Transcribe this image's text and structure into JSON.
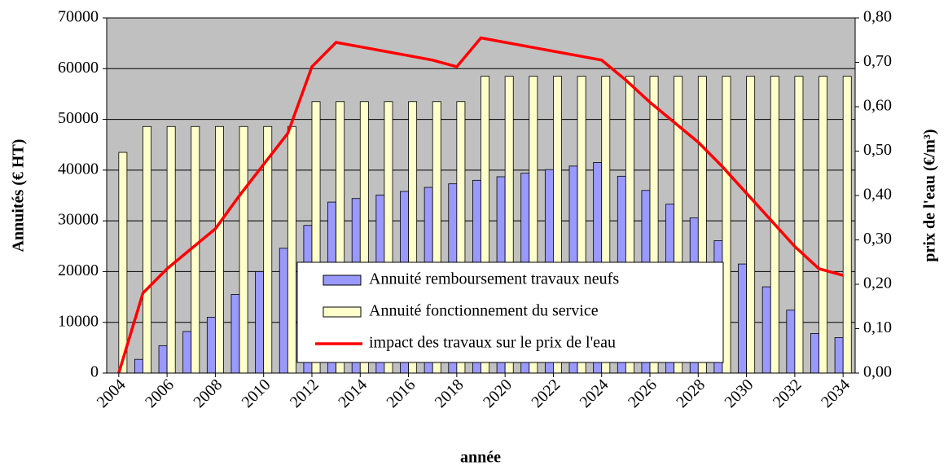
{
  "chart_data": {
    "type": "bar",
    "x_label": "année",
    "y_label": "Annuités (€ HT)",
    "y2_label": "prix de l'eau (€/m³)",
    "categories": [
      "2004",
      null,
      "2006",
      null,
      "2008",
      null,
      "2010",
      null,
      "2012",
      null,
      "2014",
      null,
      "2016",
      null,
      "2018",
      null,
      "2020",
      null,
      "2022",
      null,
      "2024",
      null,
      "2026",
      null,
      "2028",
      null,
      "2030",
      null,
      "2032",
      null,
      "2034"
    ],
    "series": [
      {
        "name": "Annuité remboursement travaux neufs",
        "type": "bar",
        "color": "#9999ff",
        "values": [
          0,
          2700,
          5400,
          8200,
          11000,
          15500,
          20000,
          24600,
          29100,
          33700,
          34400,
          35100,
          35800,
          36600,
          37300,
          38000,
          38700,
          39400,
          40100,
          40800,
          41500,
          38800,
          36000,
          33300,
          30600,
          26100,
          21500,
          17000,
          12400,
          7800,
          7000
        ]
      },
      {
        "name": "Annuité fonctionnement du service",
        "type": "bar",
        "color": "#ffffcc",
        "values": [
          43500,
          48600,
          48600,
          48600,
          48600,
          48600,
          48600,
          48600,
          53500,
          53500,
          53500,
          53500,
          53500,
          53500,
          53500,
          58500,
          58500,
          58500,
          58500,
          58500,
          58500,
          58500,
          58500,
          58500,
          58500,
          58500,
          58500,
          58500,
          58500,
          58500,
          58500
        ]
      },
      {
        "name": "impact des travaux sur le prix de l'eau",
        "type": "line",
        "axis": "y2",
        "color": "#ff0000",
        "values": [
          0,
          0.18,
          0.235,
          0.28,
          0.325,
          0.4,
          0.47,
          0.54,
          0.69,
          0.745,
          0.735,
          0.725,
          0.715,
          0.705,
          0.69,
          0.755,
          0.745,
          0.735,
          0.725,
          0.715,
          0.705,
          0.66,
          0.61,
          0.565,
          0.52,
          0.465,
          0.405,
          0.345,
          0.285,
          0.235,
          0.22
        ]
      }
    ],
    "ylim": [
      0,
      70000
    ],
    "yticks": [
      0,
      10000,
      20000,
      30000,
      40000,
      50000,
      60000,
      70000
    ],
    "y2lim": [
      0,
      0.8
    ],
    "y2ticks": [
      {
        "value": 0,
        "label": "0,00"
      },
      {
        "value": 0.1,
        "label": "0,10"
      },
      {
        "value": 0.2,
        "label": "0,20"
      },
      {
        "value": 0.3,
        "label": "0,30"
      },
      {
        "value": 0.4,
        "label": "0,40"
      },
      {
        "value": 0.5,
        "label": "0,50"
      },
      {
        "value": 0.6,
        "label": "0,60"
      },
      {
        "value": 0.7,
        "label": "0,70"
      },
      {
        "value": 0.8,
        "label": "0,80"
      }
    ],
    "grid": true,
    "plot_background": "#c0c0c0",
    "legend": "bottom-center"
  }
}
